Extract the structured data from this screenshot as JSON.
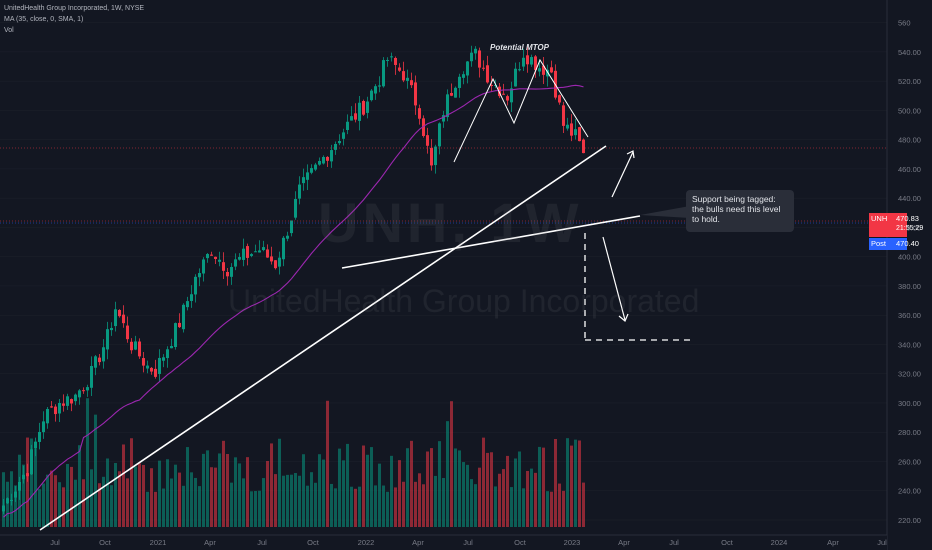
{
  "legend": {
    "title": "UnitedHealth Group Incorporated, 1W, NYSE",
    "line2": "MA (35, close, 0, SMA, 1)",
    "line3": "Vol"
  },
  "watermark": {
    "symbol": "UNH, 1W",
    "name": "UnitedHealth Group Incorporated"
  },
  "tags": {
    "symbol": "UNH",
    "price": "470.83",
    "countdown": "21:55:29",
    "post_label": "Post",
    "post_price": "470.40",
    "symbol_color": "#f23645",
    "post_color": "#2962ff"
  },
  "annotations": {
    "title": "Potential MTOP",
    "callout": "Support being tagged: the bulls need this level to hold."
  },
  "colors": {
    "up": "#089981",
    "down": "#f23645",
    "ma": "#9c27b0",
    "bg": "#131722"
  },
  "chart_data": {
    "type": "candlestick",
    "title": "UnitedHealth Group Incorporated, 1W, NYSE",
    "y_axis_ticks": [
      "560",
      "540.00",
      "520.00",
      "500.00",
      "480.00",
      "460.00",
      "440.00",
      "420.00",
      "400.00",
      "380.00",
      "360.00",
      "340.00",
      "320.00",
      "300.00",
      "280.00",
      "260.00",
      "240.00",
      "220.00"
    ],
    "x_axis_ticks": [
      "Jul",
      "Oct",
      "2021",
      "Apr",
      "Jul",
      "Oct",
      "2022",
      "Apr",
      "Jul",
      "Oct",
      "2023",
      "Apr",
      "Jul",
      "Oct",
      "2024",
      "Apr",
      "Jul"
    ],
    "ylim": [
      220,
      570
    ],
    "resistance_level": 530,
    "support_level": 470,
    "target_level": 370,
    "close_points": [
      {
        "t": 0,
        "v": 230
      },
      {
        "t": 6,
        "v": 255
      },
      {
        "t": 10,
        "v": 290
      },
      {
        "t": 14,
        "v": 300
      },
      {
        "t": 18,
        "v": 305
      },
      {
        "t": 22,
        "v": 320
      },
      {
        "t": 26,
        "v": 345
      },
      {
        "t": 28,
        "v": 365
      },
      {
        "t": 32,
        "v": 340
      },
      {
        "t": 36,
        "v": 325
      },
      {
        "t": 38,
        "v": 322
      },
      {
        "t": 44,
        "v": 355
      },
      {
        "t": 48,
        "v": 385
      },
      {
        "t": 52,
        "v": 405
      },
      {
        "t": 56,
        "v": 392
      },
      {
        "t": 60,
        "v": 400
      },
      {
        "t": 64,
        "v": 405
      },
      {
        "t": 68,
        "v": 395
      },
      {
        "t": 70,
        "v": 410
      },
      {
        "t": 74,
        "v": 445
      },
      {
        "t": 78,
        "v": 460
      },
      {
        "t": 82,
        "v": 475
      },
      {
        "t": 86,
        "v": 490
      },
      {
        "t": 90,
        "v": 503
      },
      {
        "t": 94,
        "v": 522
      },
      {
        "t": 96,
        "v": 535
      },
      {
        "t": 100,
        "v": 525
      },
      {
        "t": 104,
        "v": 500
      },
      {
        "t": 107,
        "v": 460
      },
      {
        "t": 110,
        "v": 500
      },
      {
        "t": 114,
        "v": 528
      },
      {
        "t": 118,
        "v": 538
      },
      {
        "t": 122,
        "v": 520
      },
      {
        "t": 126,
        "v": 510
      },
      {
        "t": 130,
        "v": 540
      },
      {
        "t": 134,
        "v": 530
      },
      {
        "t": 137,
        "v": 527
      },
      {
        "t": 140,
        "v": 490
      },
      {
        "t": 143,
        "v": 482
      },
      {
        "t": 145,
        "v": 470.83
      }
    ]
  }
}
